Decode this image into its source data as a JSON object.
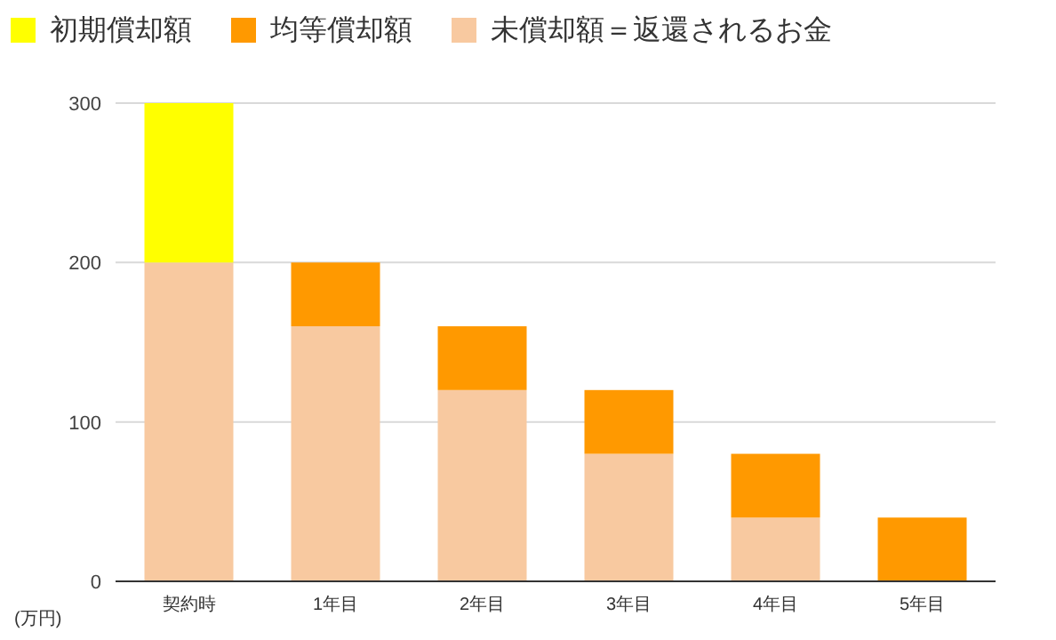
{
  "chart_data": {
    "type": "bar",
    "stacked": true,
    "ylabel": "(万円)",
    "categories": [
      "契約時",
      "1年目",
      "2年目",
      "3年目",
      "4年目",
      "5年目"
    ],
    "series": [
      {
        "name": "未償却額＝返還されるお金",
        "color": "#f8c9a0",
        "values": [
          200,
          160,
          120,
          80,
          40,
          0
        ]
      },
      {
        "name": "均等償却額",
        "color": "#ff9900",
        "values": [
          0,
          40,
          40,
          40,
          40,
          40
        ]
      },
      {
        "name": "初期償却額",
        "color": "#ffff00",
        "values": [
          100,
          0,
          0,
          0,
          0,
          0
        ]
      }
    ],
    "ylim": [
      0,
      300
    ],
    "yticks": [
      0,
      100,
      200,
      300
    ],
    "grid": "y",
    "legend": "top"
  }
}
